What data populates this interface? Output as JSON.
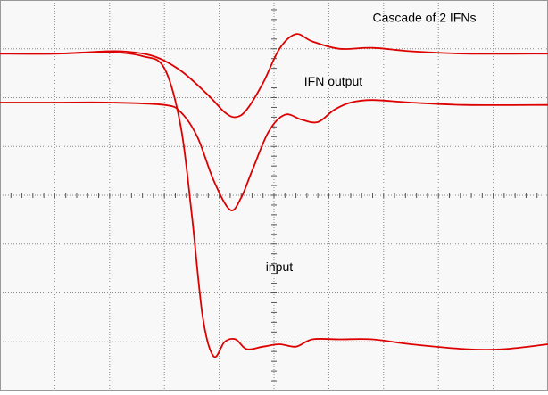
{
  "chart_data": {
    "type": "line",
    "title": "",
    "xlabel": "",
    "ylabel": "",
    "xlim": [
      0,
      10
    ],
    "ylim": [
      -4,
      4
    ],
    "grid": true,
    "divisions": {
      "x": 10,
      "y": 8
    },
    "trace_color": "#dd0000",
    "grid_color": "#888888",
    "series": [
      {
        "name": "Cascade of 2 IFNs",
        "x": [
          0,
          1,
          1.6,
          2.2,
          2.8,
          3.3,
          3.8,
          4.1,
          4.3,
          4.5,
          4.8,
          5.1,
          5.4,
          5.7,
          6.2,
          6.8,
          7.5,
          8.5,
          10
        ],
        "y": [
          2.9,
          2.9,
          2.93,
          2.95,
          2.85,
          2.55,
          2.05,
          1.7,
          1.6,
          1.75,
          2.3,
          3.0,
          3.3,
          3.15,
          3.0,
          3.02,
          2.95,
          2.9,
          2.9
        ]
      },
      {
        "name": "IFN output",
        "x": [
          0,
          1,
          2,
          3,
          3.3,
          3.6,
          3.9,
          4.2,
          4.4,
          4.6,
          4.9,
          5.2,
          5.5,
          5.8,
          6.1,
          6.4,
          6.8,
          7.5,
          8.5,
          10
        ],
        "y": [
          1.9,
          1.9,
          1.9,
          1.85,
          1.7,
          1.2,
          0.3,
          -0.3,
          -0.05,
          0.5,
          1.3,
          1.65,
          1.55,
          1.5,
          1.75,
          1.9,
          1.95,
          1.9,
          1.85,
          1.85
        ]
      },
      {
        "name": "input",
        "x": [
          0,
          1,
          2,
          2.6,
          3.0,
          3.3,
          3.5,
          3.7,
          3.9,
          4.1,
          4.3,
          4.5,
          4.8,
          5.1,
          5.4,
          5.7,
          6.2,
          6.8,
          7.5,
          8.5,
          9.2,
          10
        ],
        "y": [
          2.9,
          2.9,
          2.93,
          2.85,
          2.6,
          1.4,
          -0.4,
          -2.5,
          -3.3,
          -3.0,
          -2.95,
          -3.15,
          -3.1,
          -3.05,
          -3.1,
          -2.95,
          -2.95,
          -2.95,
          -3.05,
          -3.15,
          -3.15,
          -3.05
        ]
      }
    ],
    "annotations": [
      {
        "text": "Cascade of 2 IFNs",
        "x": 6.8,
        "y": 3.55
      },
      {
        "text": "IFN output",
        "x": 5.55,
        "y": 2.25
      },
      {
        "text": "input",
        "x": 4.85,
        "y": -1.55
      }
    ]
  }
}
